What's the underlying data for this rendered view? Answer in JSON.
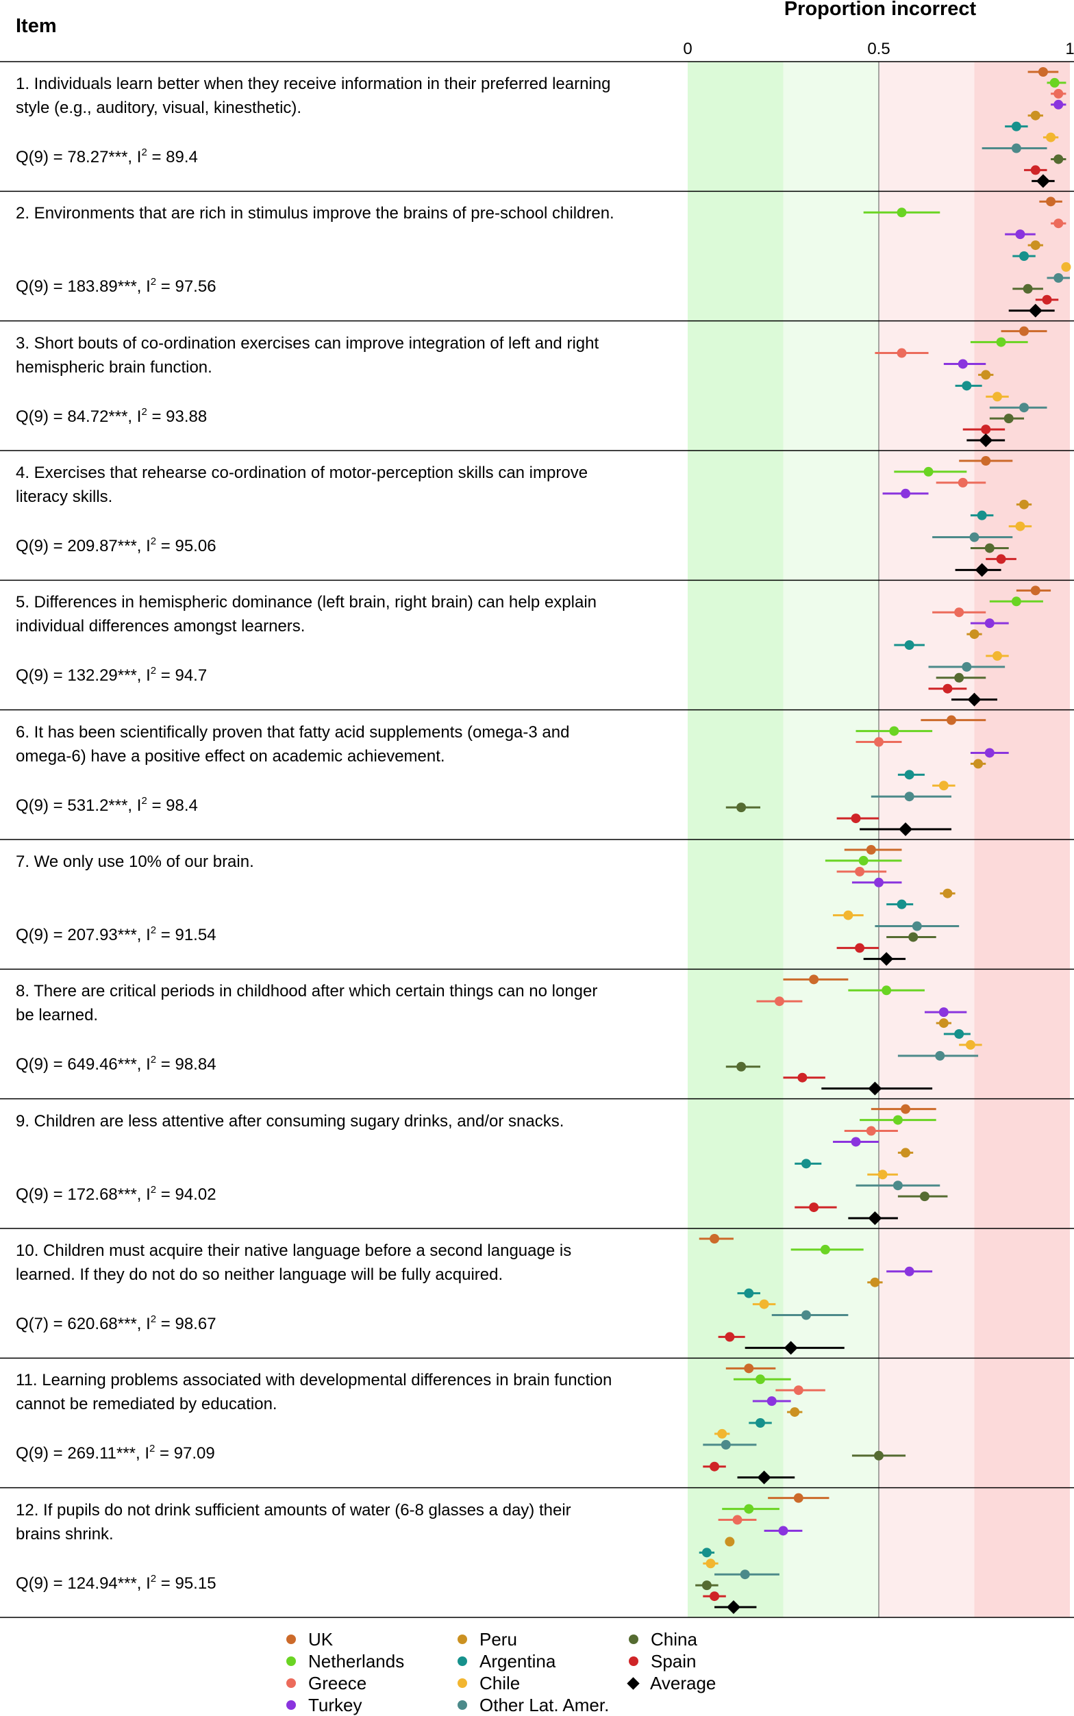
{
  "header": {
    "item_label": "Item",
    "proportion_label": "Proportion incorrect",
    "ticks": [
      "0",
      "0.5",
      "1"
    ]
  },
  "countries": [
    {
      "name": "UK",
      "color": "#cc6a2a"
    },
    {
      "name": "Netherlands",
      "color": "#6ad423"
    },
    {
      "name": "Greece",
      "color": "#ec6b5b"
    },
    {
      "name": "Turkey",
      "color": "#8a34de"
    },
    {
      "name": "Peru",
      "color": "#cb9121"
    },
    {
      "name": "Argentina",
      "color": "#16918c"
    },
    {
      "name": "Chile",
      "color": "#f2b630"
    },
    {
      "name": "Other Lat. Amer.",
      "color": "#4c8a8a"
    },
    {
      "name": "China",
      "color": "#556b31"
    },
    {
      "name": "Spain",
      "color": "#cf2427"
    },
    {
      "name": "Average",
      "color": "#000000"
    }
  ],
  "rows": [
    {
      "text": "1. Individuals learn better when they receive information in their preferred learning style (e.g., auditory, visual, kinesthetic).",
      "stat_label": "Q(9) = 78.27***, I",
      "stat_sup": "2",
      "stat_value": " = 89.4"
    },
    {
      "text": "2. Environments that are rich in stimulus improve the brains of pre-school children.",
      "stat_label": "Q(9) = 183.89***, I",
      "stat_sup": "2",
      "stat_value": " = 97.56"
    },
    {
      "text": "3. Short bouts of co-ordination exercises can improve integration of left and right hemispheric brain function.",
      "stat_label": "Q(9) = 84.72***, I",
      "stat_sup": "2",
      "stat_value": " = 93.88"
    },
    {
      "text": "4. Exercises that rehearse co-ordination of motor-perception skills can improve literacy skills.",
      "stat_label": "Q(9) = 209.87***, I",
      "stat_sup": "2",
      "stat_value": " = 95.06"
    },
    {
      "text": "5. Differences in hemispheric dominance (left brain, right brain) can help explain individual differences amongst learners.",
      "stat_label": "Q(9) = 132.29***, I",
      "stat_sup": "2",
      "stat_value": " = 94.7"
    },
    {
      "text": "6. It has been scientifically proven that fatty acid supplements (omega-3 and omega-6) have a positive effect on academic achievement.",
      "stat_label": "Q(9) = 531.2***, I",
      "stat_sup": "2",
      "stat_value": " = 98.4"
    },
    {
      "text": "7. We only use 10% of our brain.",
      "stat_label": "Q(9) = 207.93***, I",
      "stat_sup": "2",
      "stat_value": " = 91.54"
    },
    {
      "text": "8. There are critical periods in childhood after which certain things can no longer be learned.",
      "stat_label": "Q(9) = 649.46***, I",
      "stat_sup": "2",
      "stat_value": " = 98.84"
    },
    {
      "text": "9. Children are less attentive after consuming sugary drinks, and/or snacks.",
      "stat_label": "Q(9) = 172.68***, I",
      "stat_sup": "2",
      "stat_value": " = 94.02"
    },
    {
      "text": "10. Children must acquire their native language before a second language is learned. If they do not do so neither language will be fully acquired.",
      "stat_label": "Q(7) = 620.68***, I",
      "stat_sup": "2",
      "stat_value": " = 98.67"
    },
    {
      "text": "11. Learning problems associated with developmental differences in brain function cannot be remediated by education.",
      "stat_label": "Q(9) = 269.11***, I",
      "stat_sup": "2",
      "stat_value": " = 97.09"
    },
    {
      "text": "12. If pupils do not drink sufficient amounts of water (6-8 glasses a day) their brains shrink.",
      "stat_label": "Q(9) = 124.94***, I",
      "stat_sup": "2",
      "stat_value": " = 95.15"
    }
  ],
  "chart_data": {
    "type": "scatter",
    "title": "",
    "xlabel": "Proportion incorrect",
    "xlim": [
      0,
      1
    ],
    "x_ticks": [
      0,
      0.5,
      1
    ],
    "bands": [
      {
        "from": 0,
        "to": 0.25,
        "color": "#dcfad8"
      },
      {
        "from": 0.25,
        "to": 0.5,
        "color": "#eefcec"
      },
      {
        "from": 0.5,
        "to": 0.75,
        "color": "#fdeded"
      },
      {
        "from": 0.75,
        "to": 1,
        "color": "#fcdada"
      }
    ],
    "series_order": [
      "UK",
      "Netherlands",
      "Greece",
      "Turkey",
      "Peru",
      "Argentina",
      "Chile",
      "Other Lat. Amer.",
      "China",
      "Spain",
      "Average"
    ],
    "items": [
      {
        "item": 1,
        "values": [
          [
            0.93,
            0.89,
            0.97
          ],
          [
            0.96,
            0.94,
            0.99
          ],
          [
            0.97,
            0.95,
            0.99
          ],
          [
            0.97,
            0.95,
            0.99
          ],
          [
            0.91,
            0.89,
            0.93
          ],
          [
            0.86,
            0.83,
            0.89
          ],
          [
            0.95,
            0.93,
            0.97
          ],
          [
            0.86,
            0.77,
            0.94
          ],
          [
            0.97,
            0.95,
            0.99
          ],
          [
            0.91,
            0.88,
            0.94
          ],
          [
            0.93,
            0.9,
            0.96
          ]
        ]
      },
      {
        "item": 2,
        "values": [
          [
            0.95,
            0.92,
            0.98
          ],
          [
            0.56,
            0.46,
            0.66
          ],
          [
            0.97,
            0.95,
            0.99
          ],
          [
            0.87,
            0.83,
            0.91
          ],
          [
            0.91,
            0.89,
            0.93
          ],
          [
            0.88,
            0.85,
            0.91
          ],
          [
            0.99,
            0.98,
            1.0
          ],
          [
            0.97,
            0.94,
            1.0
          ],
          [
            0.89,
            0.85,
            0.93
          ],
          [
            0.94,
            0.91,
            0.97
          ],
          [
            0.91,
            0.84,
            0.96
          ]
        ]
      },
      {
        "item": 3,
        "values": [
          [
            0.88,
            0.82,
            0.94
          ],
          [
            0.82,
            0.74,
            0.89
          ],
          [
            0.56,
            0.49,
            0.63
          ],
          [
            0.72,
            0.67,
            0.78
          ],
          [
            0.78,
            0.76,
            0.8
          ],
          [
            0.73,
            0.7,
            0.77
          ],
          [
            0.81,
            0.78,
            0.84
          ],
          [
            0.88,
            0.79,
            0.94
          ],
          [
            0.84,
            0.79,
            0.88
          ],
          [
            0.78,
            0.72,
            0.83
          ],
          [
            0.78,
            0.73,
            0.83
          ]
        ]
      },
      {
        "item": 4,
        "values": [
          [
            0.78,
            0.71,
            0.85
          ],
          [
            0.63,
            0.54,
            0.73
          ],
          [
            0.72,
            0.65,
            0.78
          ],
          [
            0.57,
            0.51,
            0.63
          ],
          [
            0.88,
            0.86,
            0.9
          ],
          [
            0.77,
            0.74,
            0.8
          ],
          [
            0.87,
            0.84,
            0.9
          ],
          [
            0.75,
            0.64,
            0.85
          ],
          [
            0.79,
            0.74,
            0.84
          ],
          [
            0.82,
            0.78,
            0.86
          ],
          [
            0.77,
            0.7,
            0.82
          ]
        ]
      },
      {
        "item": 5,
        "values": [
          [
            0.91,
            0.86,
            0.95
          ],
          [
            0.86,
            0.79,
            0.93
          ],
          [
            0.71,
            0.64,
            0.78
          ],
          [
            0.79,
            0.74,
            0.84
          ],
          [
            0.75,
            0.73,
            0.77
          ],
          [
            0.58,
            0.54,
            0.62
          ],
          [
            0.81,
            0.78,
            0.84
          ],
          [
            0.73,
            0.63,
            0.83
          ],
          [
            0.71,
            0.65,
            0.78
          ],
          [
            0.68,
            0.63,
            0.73
          ],
          [
            0.75,
            0.69,
            0.81
          ]
        ]
      },
      {
        "item": 6,
        "values": [
          [
            0.69,
            0.61,
            0.78
          ],
          [
            0.54,
            0.44,
            0.64
          ],
          [
            0.5,
            0.44,
            0.56
          ],
          [
            0.79,
            0.74,
            0.84
          ],
          [
            0.76,
            0.74,
            0.78
          ],
          [
            0.58,
            0.55,
            0.62
          ],
          [
            0.67,
            0.64,
            0.7
          ],
          [
            0.58,
            0.48,
            0.69
          ],
          [
            0.14,
            0.1,
            0.19
          ],
          [
            0.44,
            0.39,
            0.5
          ],
          [
            0.57,
            0.45,
            0.69
          ]
        ]
      },
      {
        "item": 7,
        "values": [
          [
            0.48,
            0.41,
            0.56
          ],
          [
            0.46,
            0.36,
            0.56
          ],
          [
            0.45,
            0.39,
            0.52
          ],
          [
            0.5,
            0.43,
            0.56
          ],
          [
            0.68,
            0.66,
            0.7
          ],
          [
            0.56,
            0.52,
            0.59
          ],
          [
            0.42,
            0.38,
            0.46
          ],
          [
            0.6,
            0.49,
            0.71
          ],
          [
            0.59,
            0.52,
            0.65
          ],
          [
            0.45,
            0.39,
            0.5
          ],
          [
            0.52,
            0.46,
            0.57
          ]
        ]
      },
      {
        "item": 8,
        "values": [
          [
            0.33,
            0.25,
            0.42
          ],
          [
            0.52,
            0.42,
            0.62
          ],
          [
            0.24,
            0.18,
            0.3
          ],
          [
            0.67,
            0.62,
            0.73
          ],
          [
            0.67,
            0.65,
            0.69
          ],
          [
            0.71,
            0.67,
            0.74
          ],
          [
            0.74,
            0.71,
            0.77
          ],
          [
            0.66,
            0.55,
            0.76
          ],
          [
            0.14,
            0.1,
            0.19
          ],
          [
            0.3,
            0.25,
            0.36
          ],
          [
            0.49,
            0.35,
            0.64
          ]
        ]
      },
      {
        "item": 9,
        "values": [
          [
            0.57,
            0.48,
            0.65
          ],
          [
            0.55,
            0.45,
            0.65
          ],
          [
            0.48,
            0.41,
            0.55
          ],
          [
            0.44,
            0.38,
            0.5
          ],
          [
            0.57,
            0.55,
            0.59
          ],
          [
            0.31,
            0.28,
            0.35
          ],
          [
            0.51,
            0.47,
            0.55
          ],
          [
            0.55,
            0.44,
            0.66
          ],
          [
            0.62,
            0.55,
            0.68
          ],
          [
            0.33,
            0.28,
            0.39
          ],
          [
            0.49,
            0.42,
            0.55
          ]
        ]
      },
      {
        "item": 10,
        "values": [
          [
            0.07,
            0.03,
            0.12
          ],
          [
            0.36,
            0.27,
            0.46
          ],
          [
            null,
            null,
            null
          ],
          [
            0.58,
            0.52,
            0.64
          ],
          [
            0.49,
            0.47,
            0.51
          ],
          [
            0.16,
            0.13,
            0.19
          ],
          [
            0.2,
            0.17,
            0.23
          ],
          [
            0.31,
            0.22,
            0.42
          ],
          [
            null,
            null,
            null
          ],
          [
            0.11,
            0.08,
            0.15
          ],
          [
            0.27,
            0.15,
            0.41
          ]
        ]
      },
      {
        "item": 11,
        "values": [
          [
            0.16,
            0.1,
            0.23
          ],
          [
            0.19,
            0.12,
            0.27
          ],
          [
            0.29,
            0.23,
            0.36
          ],
          [
            0.22,
            0.17,
            0.27
          ],
          [
            0.28,
            0.26,
            0.3
          ],
          [
            0.19,
            0.16,
            0.22
          ],
          [
            0.09,
            0.07,
            0.11
          ],
          [
            0.1,
            0.04,
            0.18
          ],
          [
            0.5,
            0.43,
            0.57
          ],
          [
            0.07,
            0.04,
            0.1
          ],
          [
            0.2,
            0.13,
            0.28
          ]
        ]
      },
      {
        "item": 12,
        "values": [
          [
            0.29,
            0.21,
            0.37
          ],
          [
            0.16,
            0.09,
            0.24
          ],
          [
            0.13,
            0.08,
            0.18
          ],
          [
            0.25,
            0.2,
            0.3
          ],
          [
            0.11,
            0.1,
            0.12
          ],
          [
            0.05,
            0.03,
            0.07
          ],
          [
            0.06,
            0.04,
            0.08
          ],
          [
            0.15,
            0.07,
            0.24
          ],
          [
            0.05,
            0.02,
            0.08
          ],
          [
            0.07,
            0.04,
            0.1
          ],
          [
            0.12,
            0.07,
            0.18
          ]
        ]
      }
    ]
  }
}
